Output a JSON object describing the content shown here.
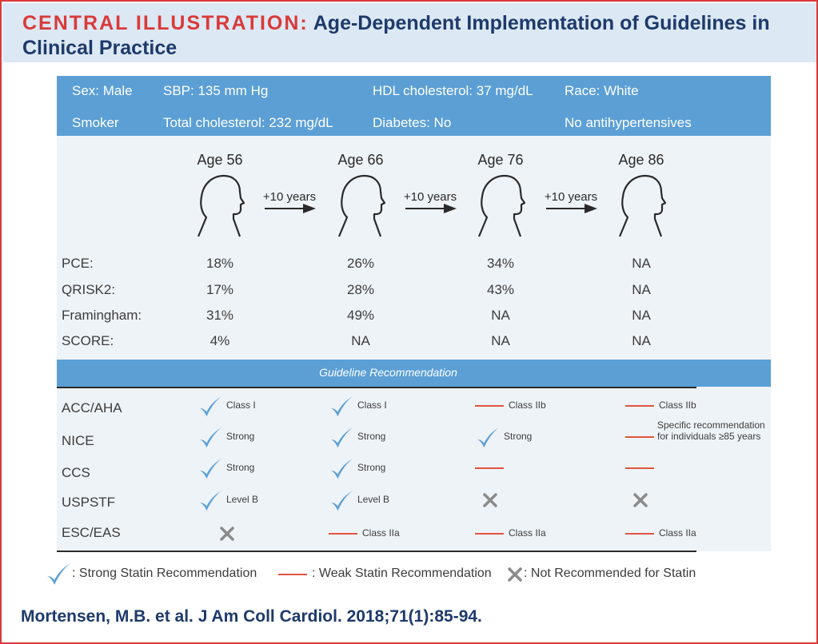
{
  "header": {
    "title_lead": "CENTRAL ILLUSTRATION:",
    "title_rest": "Age-Dependent Implementation of Guidelines in Clinical Practice"
  },
  "profile": {
    "sex": "Sex: Male",
    "sbp": "SBP: 135 mm Hg",
    "hdl": "HDL cholesterol: 37 mg/dL",
    "race": "Race: White",
    "smoker": "Smoker",
    "total_chol": "Total cholesterol: 232 mg/dL",
    "diabetes": "Diabetes: No",
    "antihypertensives": "No antihypertensives"
  },
  "ages": [
    "Age 56",
    "Age 66",
    "Age 76",
    "Age 86"
  ],
  "arrow_label": "+10 years",
  "scores": [
    {
      "name": "PCE:",
      "values": [
        "18%",
        "26%",
        "34%",
        "NA"
      ]
    },
    {
      "name": "QRISK2:",
      "values": [
        "17%",
        "28%",
        "43%",
        "NA"
      ]
    },
    {
      "name": "Framingham:",
      "values": [
        "31%",
        "49%",
        "NA",
        "NA"
      ]
    },
    {
      "name": "SCORE:",
      "values": [
        "4%",
        "NA",
        "NA",
        "NA"
      ]
    }
  ],
  "recommendation_title": "Guideline Recommendation",
  "guidelines": [
    {
      "name": "ACC/AHA",
      "cells": [
        {
          "type": "check",
          "label": "Class I"
        },
        {
          "type": "check",
          "label": "Class I"
        },
        {
          "type": "dash",
          "label": "Class IIb"
        },
        {
          "type": "dash",
          "label": "Class IIb"
        }
      ]
    },
    {
      "name": "NICE",
      "cells": [
        {
          "type": "check",
          "label": "Strong"
        },
        {
          "type": "check",
          "label": "Strong"
        },
        {
          "type": "check",
          "label": "Strong"
        },
        {
          "type": "dash",
          "label": "Specific recommendation",
          "label2": "for individuals ≥85 years"
        }
      ]
    },
    {
      "name": "CCS",
      "cells": [
        {
          "type": "check",
          "label": "Strong"
        },
        {
          "type": "check",
          "label": "Strong"
        },
        {
          "type": "dash",
          "label": ""
        },
        {
          "type": "dash",
          "label": ""
        }
      ]
    },
    {
      "name": "USPSTF",
      "cells": [
        {
          "type": "check",
          "label": "Level B"
        },
        {
          "type": "check",
          "label": "Level B"
        },
        {
          "type": "x",
          "label": ""
        },
        {
          "type": "x",
          "label": ""
        }
      ]
    },
    {
      "name": "ESC/EAS",
      "cells": [
        {
          "type": "x",
          "label": ""
        },
        {
          "type": "dash",
          "label": "Class IIa"
        },
        {
          "type": "dash",
          "label": "Class IIa"
        },
        {
          "type": "dash",
          "label": "Class IIa"
        }
      ]
    }
  ],
  "legend": {
    "strong": ": Strong Statin Recommendation",
    "weak": ": Weak Statin Recommendation",
    "not": ": Not Recommended for Statin"
  },
  "colors": {
    "check": "#5b9fd5",
    "dash": "#e0543f",
    "x": "#8a8a8a"
  },
  "citation": "Mortensen, M.B. et al. J Am Coll Cardiol. 2018;71(1):85-94."
}
